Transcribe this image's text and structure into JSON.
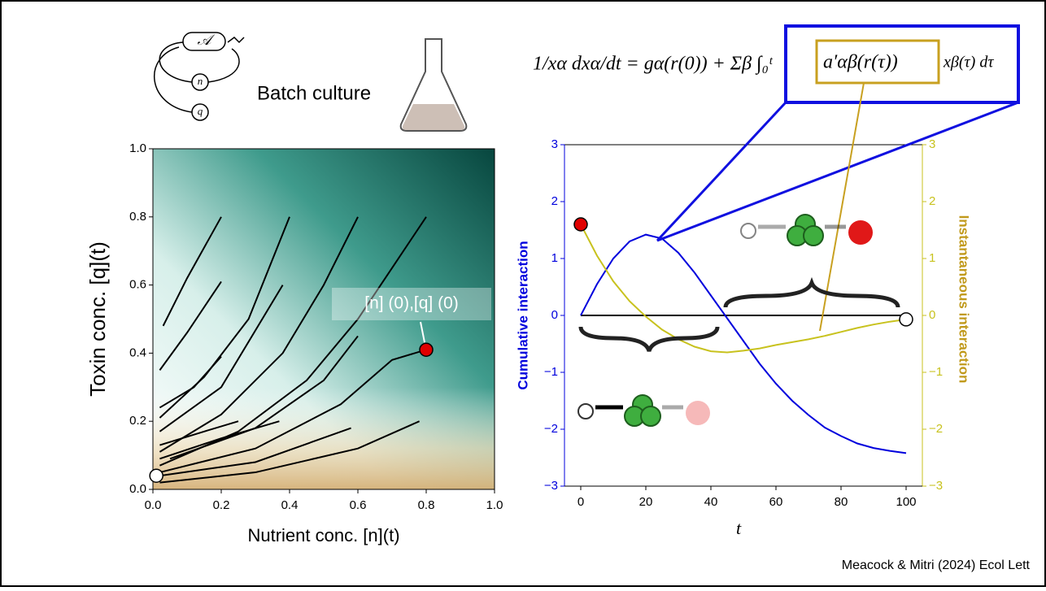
{
  "batch_culture": "Batch culture",
  "citation": "Meacock & Mitri (2024) Ecol Lett",
  "diagram": {
    "A": "𝒜",
    "n": "n",
    "q": "q"
  },
  "equation": {
    "left": "1/xα dxα/dt = gα(r(0)) + Σβ ∫₀ᵗ",
    "boxed": "a′αβ(r(τ))",
    "right": "xβ(τ) dτ"
  },
  "chart_data": [
    {
      "type": "streamplot",
      "xlabel": "Nutrient conc. [n](t)",
      "ylabel": "Toxin conc. [q](t)",
      "xlim": [
        0,
        1
      ],
      "ylim": [
        0,
        1
      ],
      "xticks": [
        {
          "value": 0,
          "label": "0.0"
        },
        {
          "value": 0.2,
          "label": "0.2"
        },
        {
          "value": 0.4,
          "label": "0.4"
        },
        {
          "value": 0.6,
          "label": "0.6"
        },
        {
          "value": 0.8,
          "label": "0.8"
        },
        {
          "value": 1,
          "label": "1.0"
        }
      ],
      "yticks": [
        {
          "value": 0,
          "label": "0.0"
        },
        {
          "value": 0.2,
          "label": "0.2"
        },
        {
          "value": 0.4,
          "label": "0.4"
        },
        {
          "value": 0.6,
          "label": "0.6"
        },
        {
          "value": 0.8,
          "label": "0.8"
        },
        {
          "value": 1,
          "label": "1.0"
        }
      ],
      "annotation": "[n] (0),[q] (0)",
      "start_point": {
        "x": 0.8,
        "y": 0.41,
        "color": "#e00000"
      },
      "end_point": {
        "x": 0.01,
        "y": 0.04,
        "color": "#ffffff"
      },
      "series": [
        {
          "color": "#000000",
          "x": [
            0.03,
            0.1,
            0.2
          ],
          "values": [
            0.48,
            0.62,
            0.8
          ]
        },
        {
          "color": "#000000",
          "x": [
            0.02,
            0.1,
            0.2
          ],
          "values": [
            0.35,
            0.46,
            0.61
          ]
        },
        {
          "color": "#000000",
          "x": [
            0.02,
            0.12,
            0.2
          ],
          "values": [
            0.24,
            0.3,
            0.39
          ]
        },
        {
          "color": "#000000",
          "x": [
            0.02,
            0.15,
            0.28,
            0.4
          ],
          "values": [
            0.21,
            0.33,
            0.5,
            0.8
          ]
        },
        {
          "color": "#000000",
          "x": [
            0.02,
            0.2,
            0.38
          ],
          "values": [
            0.17,
            0.3,
            0.6
          ]
        },
        {
          "color": "#000000",
          "x": [
            0.02,
            0.15,
            0.25
          ],
          "values": [
            0.13,
            0.17,
            0.2
          ]
        },
        {
          "color": "#000000",
          "x": [
            0.02,
            0.2,
            0.38,
            0.5,
            0.6
          ],
          "values": [
            0.11,
            0.22,
            0.4,
            0.6,
            0.8
          ]
        },
        {
          "color": "#000000",
          "x": [
            0.02,
            0.2,
            0.37
          ],
          "values": [
            0.09,
            0.15,
            0.2
          ]
        },
        {
          "color": "#000000",
          "x": [
            0.02,
            0.25,
            0.45,
            0.6,
            0.7,
            0.8
          ],
          "values": [
            0.07,
            0.17,
            0.32,
            0.5,
            0.65,
            0.8
          ]
        },
        {
          "color": "#000000",
          "x": [
            0.02,
            0.3,
            0.55,
            0.7,
            0.8
          ],
          "values": [
            0.05,
            0.12,
            0.25,
            0.38,
            0.41
          ]
        },
        {
          "color": "#000000",
          "x": [
            0.02,
            0.3,
            0.58
          ],
          "values": [
            0.04,
            0.08,
            0.18
          ]
        },
        {
          "color": "#000000",
          "x": [
            0.02,
            0.3,
            0.6,
            0.78
          ],
          "values": [
            0.02,
            0.05,
            0.12,
            0.2
          ]
        },
        {
          "color": "#000000",
          "x": [
            0.05,
            0.3,
            0.5,
            0.6
          ],
          "values": [
            0.09,
            0.18,
            0.32,
            0.45
          ]
        }
      ]
    },
    {
      "type": "line",
      "xlabel": "t",
      "ylabel": "Cumulative interaction",
      "y2label": "Instantaneous interaction",
      "xlim": [
        -5,
        105
      ],
      "ylim": [
        -3,
        3
      ],
      "y2lim": [
        -3,
        3
      ],
      "xticks": [
        0,
        20,
        40,
        60,
        80,
        100
      ],
      "yticks": [
        {
          "value": -3,
          "label": "−3"
        },
        {
          "value": -2,
          "label": "−2"
        },
        {
          "value": -1,
          "label": "−1"
        },
        0,
        1,
        2,
        3
      ],
      "y2ticks": [
        {
          "value": -3,
          "label": "−3"
        },
        {
          "value": -2,
          "label": "−2"
        },
        {
          "value": -1,
          "label": "−1"
        },
        0,
        1,
        2,
        3
      ],
      "x": [
        0,
        5,
        10,
        15,
        20,
        25,
        30,
        35,
        40,
        45,
        50,
        55,
        60,
        65,
        70,
        75,
        80,
        85,
        90,
        95,
        100
      ],
      "start_point": {
        "x": 0,
        "y": 1.6,
        "color": "#e00000"
      },
      "end_point": {
        "x": 100,
        "y": -0.07,
        "color": "#ffffff"
      },
      "series": [
        {
          "color": "#0000dd",
          "values": [
            0,
            0.55,
            1.0,
            1.3,
            1.42,
            1.35,
            1.1,
            0.75,
            0.35,
            -0.05,
            -0.45,
            -0.85,
            -1.2,
            -1.5,
            -1.75,
            -1.97,
            -2.12,
            -2.25,
            -2.33,
            -2.38,
            -2.42
          ]
        },
        {
          "color": "#c8c21e",
          "axis": "y2",
          "values": [
            1.6,
            1.05,
            0.6,
            0.25,
            -0.02,
            -0.25,
            -0.42,
            -0.55,
            -0.63,
            -0.65,
            -0.62,
            -0.58,
            -0.52,
            -0.47,
            -0.42,
            -0.36,
            -0.29,
            -0.22,
            -0.16,
            -0.11,
            -0.07
          ]
        }
      ]
    }
  ]
}
